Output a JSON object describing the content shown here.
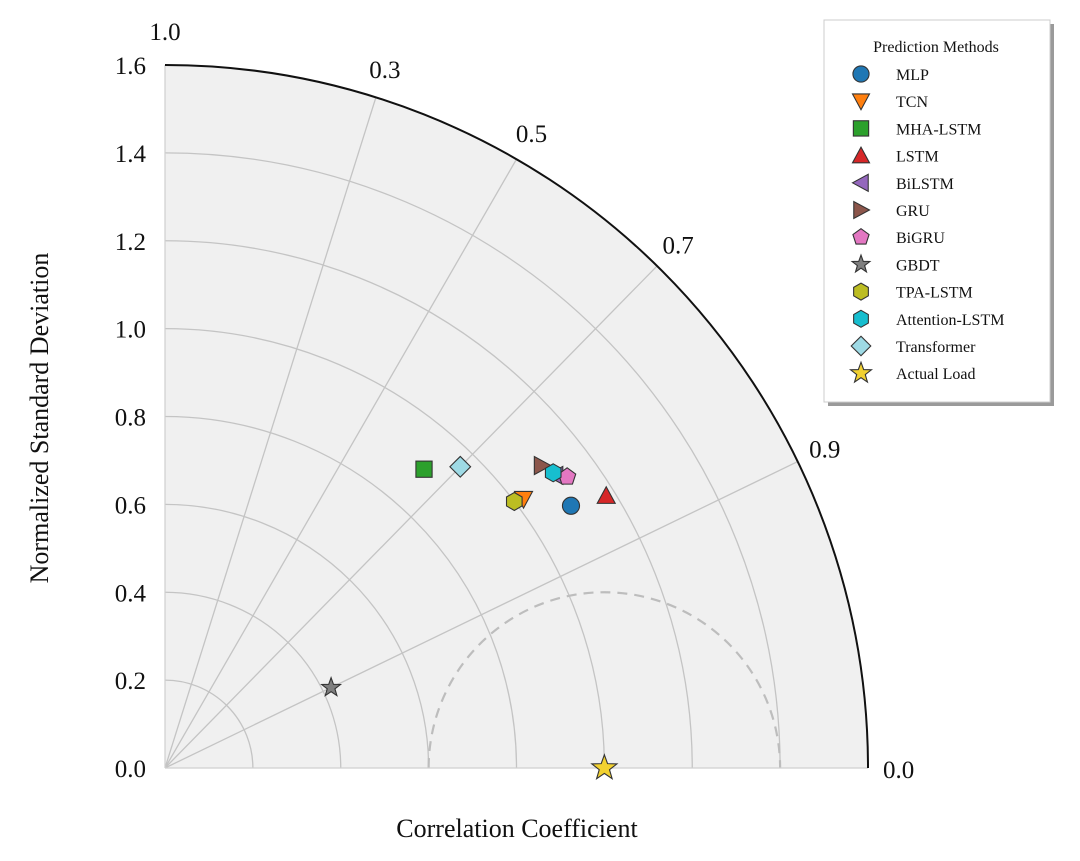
{
  "chart_data": {
    "type": "scatter",
    "subtype": "taylor-diagram",
    "xlabel": "Correlation Coefficient",
    "ylabel": "Normalized Standard Deviation",
    "std_range": [
      0.0,
      1.6
    ],
    "std_ticks": [
      "0.0",
      "0.2",
      "0.4",
      "0.6",
      "0.8",
      "1.0",
      "1.2",
      "1.4",
      "1.6"
    ],
    "std_tick_values": [
      0.0,
      0.2,
      0.4,
      0.6,
      0.8,
      1.0,
      1.2,
      1.4,
      1.6
    ],
    "correlation_ticks": [
      {
        "value": 1.0,
        "label": "1.0"
      },
      {
        "value": 0.9,
        "label": "0.9"
      },
      {
        "value": 0.7,
        "label": "0.7"
      },
      {
        "value": 0.5,
        "label": "0.5"
      },
      {
        "value": 0.3,
        "label": "0.3"
      },
      {
        "value": 0.0,
        "label": "0.0"
      }
    ],
    "correlation_gridlines": [
      0.9,
      0.7,
      0.5,
      0.3
    ],
    "reference_arc_radius": 0.4,
    "grid": true,
    "legend": {
      "title": "Prediction Methods",
      "placement": "top-right"
    },
    "series": [
      {
        "name": "MLP",
        "marker": "circle",
        "color": "#1f77b4",
        "correlation": 0.84,
        "std": 1.1
      },
      {
        "name": "TCN",
        "marker": "triangle-down",
        "color": "#ff7f0e",
        "correlation": 0.8,
        "std": 1.02
      },
      {
        "name": "MHA-LSTM",
        "marker": "square",
        "color": "#2ca02c",
        "correlation": 0.655,
        "std": 0.9
      },
      {
        "name": "LSTM",
        "marker": "triangle-up",
        "color": "#d62728",
        "correlation": 0.851,
        "std": 1.18
      },
      {
        "name": "BiLSTM",
        "marker": "triangle-left",
        "color": "#9467bd",
        "correlation": 0.8,
        "std": 1.11
      },
      {
        "name": "GRU",
        "marker": "triangle-right",
        "color": "#8c564b",
        "correlation": 0.78,
        "std": 1.1
      },
      {
        "name": "BiGRU",
        "marker": "pentagon",
        "color": "#e377c2",
        "correlation": 0.81,
        "std": 1.13
      },
      {
        "name": "GBDT",
        "marker": "star",
        "color": "#7f7f7f",
        "correlation": 0.9,
        "std": 0.42
      },
      {
        "name": "TPA-LSTM",
        "marker": "hexagon",
        "color": "#bcbd22",
        "correlation": 0.795,
        "std": 1.0
      },
      {
        "name": "Attention-LSTM",
        "marker": "hexagon",
        "color": "#17becf",
        "correlation": 0.796,
        "std": 1.11
      },
      {
        "name": "Transformer",
        "marker": "diamond",
        "color": "#9edae5",
        "correlation": 0.7,
        "std": 0.96
      },
      {
        "name": "Actual Load",
        "marker": "star",
        "color": "#f2d130",
        "correlation": 1.0,
        "std": 1.0
      }
    ]
  }
}
